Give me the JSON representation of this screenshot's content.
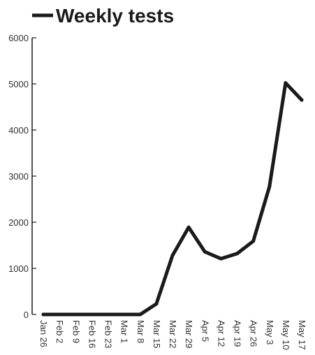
{
  "chart_data": {
    "type": "line",
    "title": "",
    "xlabel": "",
    "ylabel": "",
    "x": [
      "Jan 26",
      "Feb 2",
      "Feb 9",
      "Feb 16",
      "Feb 23",
      "Mar 1",
      "Mar 8",
      "Mar 15",
      "Mar 22",
      "Mar 29",
      "Apr 5",
      "Apr 12",
      "Apr 19",
      "Apr 26",
      "May 3",
      "May 10",
      "May 17"
    ],
    "series": [
      {
        "name": "Weekly tests",
        "color": "#1a1a1a",
        "values": [
          0,
          0,
          0,
          0,
          0,
          0,
          0,
          230,
          1280,
          1890,
          1360,
          1210,
          1320,
          1590,
          2770,
          5020,
          4650
        ]
      }
    ],
    "ylim": [
      0,
      6000
    ],
    "yticks": [
      0,
      1000,
      2000,
      3000,
      4000,
      5000,
      6000
    ],
    "grid": false,
    "legend": "top-left"
  }
}
